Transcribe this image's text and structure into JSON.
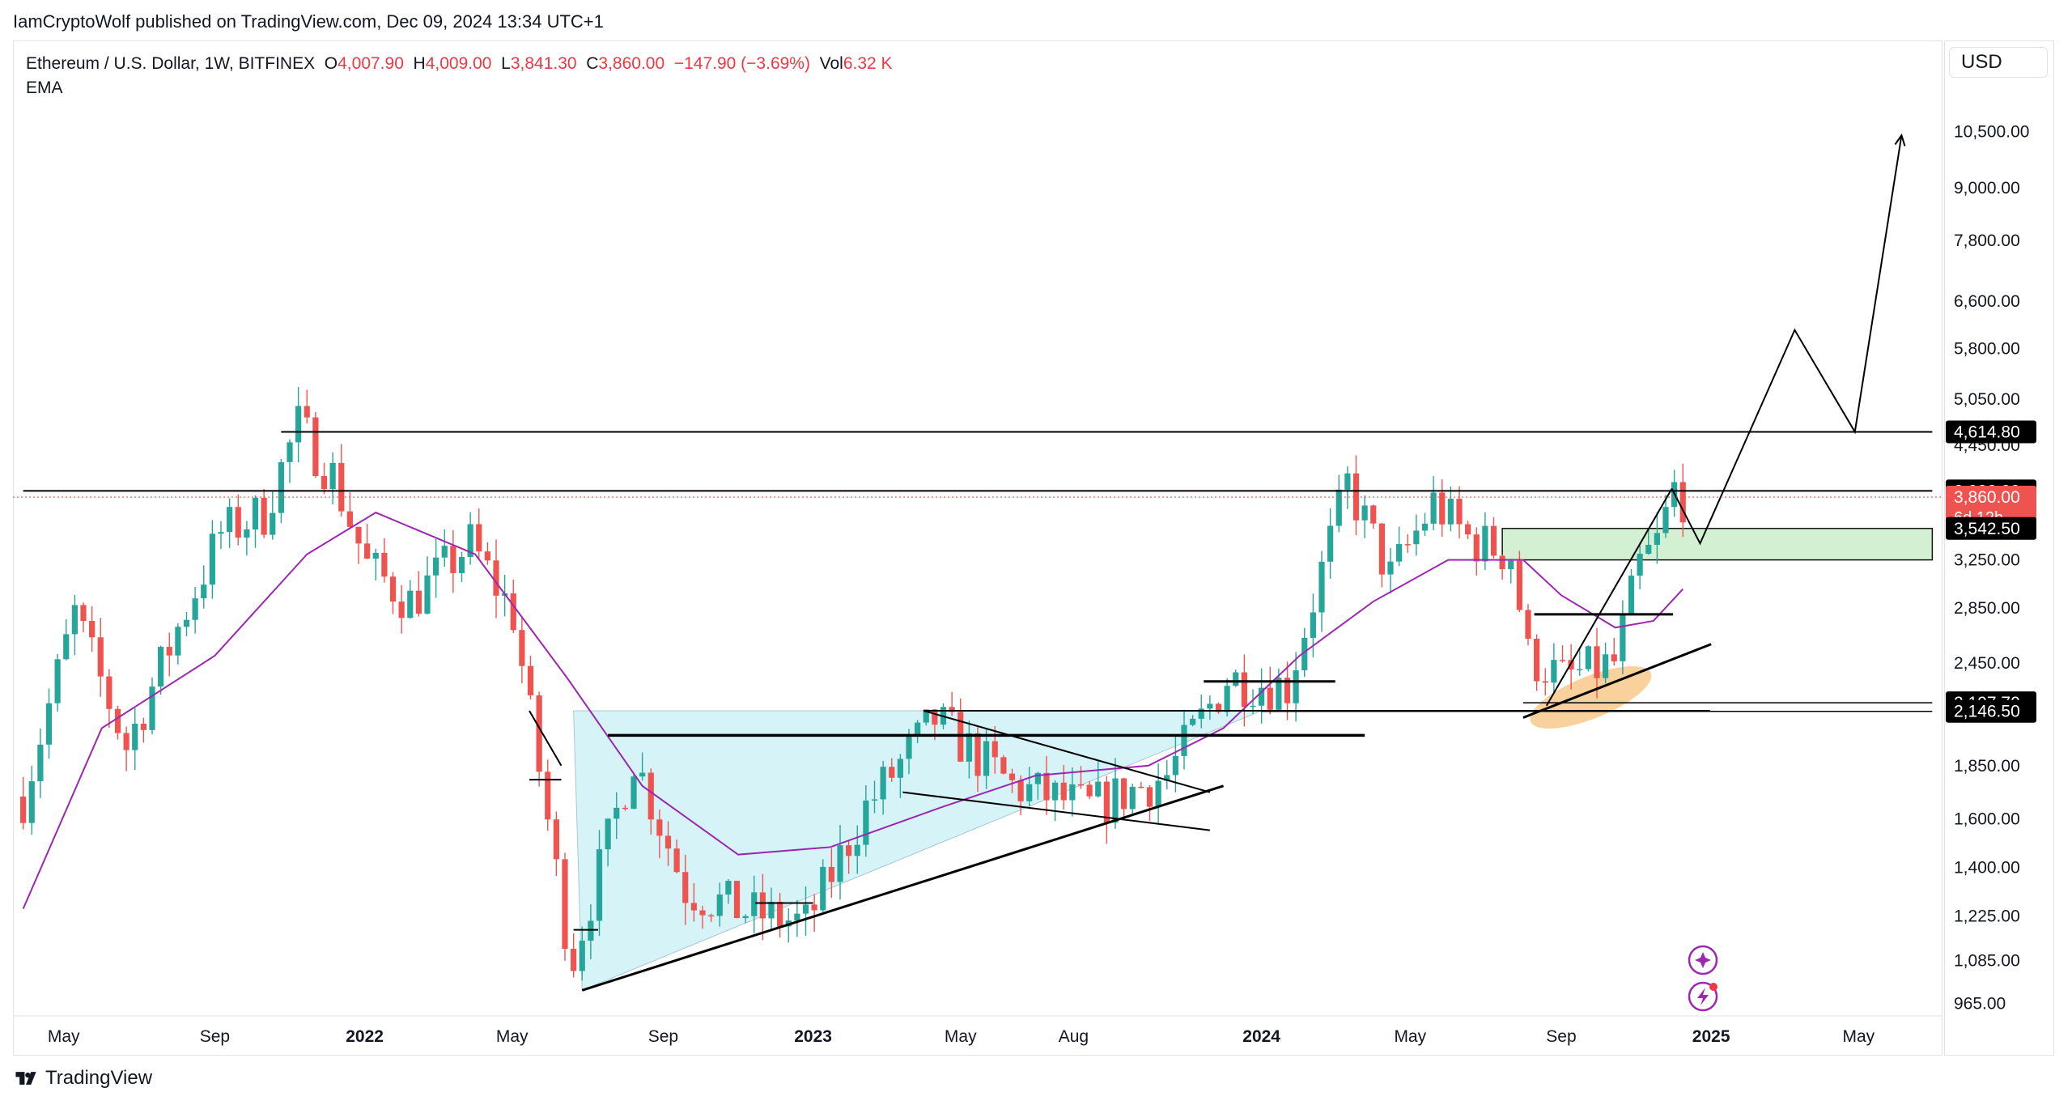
{
  "attribution": "IamCryptoWolf published on TradingView.com, Dec 09, 2024 13:34 UTC+1",
  "legend": {
    "symbol": "Ethereum / U.S. Dollar, 1W, BITFINEX",
    "o_key": "O",
    "o_val": "4,007.90",
    "h_key": "H",
    "h_val": "4,009.00",
    "l_key": "L",
    "l_val": "3,841.30",
    "c_key": "C",
    "c_val": "3,860.00",
    "change": "−147.90 (−3.69%)",
    "vol_key": "Vol",
    "vol_val": "6.32 K",
    "indicator": "EMA"
  },
  "currency_button": "USD",
  "footer_brand": "TradingView",
  "colors": {
    "up": "#26a69a",
    "down": "#ef5350",
    "ema": "#9c27b0",
    "triangle_fill": "#d6f3f8",
    "zone_fill": "#d4f0d2",
    "highlight": "#f7c98b",
    "price_tag": "#ef5350",
    "label_dark": "#000000"
  },
  "chart_data": {
    "type": "candlestick",
    "scale": "log",
    "ylim": [
      930,
      12200
    ],
    "y_ticks": [
      {
        "v": 10500,
        "t": "10,500.00"
      },
      {
        "v": 9000,
        "t": "9,000.00"
      },
      {
        "v": 7800,
        "t": "7,800.00"
      },
      {
        "v": 6600,
        "t": "6,600.00"
      },
      {
        "v": 5800,
        "t": "5,800.00"
      },
      {
        "v": 5050,
        "t": "5,050.00"
      },
      {
        "v": 4450,
        "t": "4,450.00"
      },
      {
        "v": 3250,
        "t": "3,250.00"
      },
      {
        "v": 2850,
        "t": "2,850.00"
      },
      {
        "v": 2450,
        "t": "2,450.00"
      },
      {
        "v": 1850,
        "t": "1,850.00"
      },
      {
        "v": 1600,
        "t": "1,600.00"
      },
      {
        "v": 1400,
        "t": "1,400.00"
      },
      {
        "v": 1225,
        "t": "1,225.00"
      },
      {
        "v": 1085,
        "t": "1,085.00"
      },
      {
        "v": 965,
        "t": "965.00"
      }
    ],
    "x_ticks": [
      {
        "d": "2021-05-01",
        "t": "May",
        "bold": false
      },
      {
        "d": "2021-09-01",
        "t": "Sep",
        "bold": false
      },
      {
        "d": "2022-01-01",
        "t": "2022",
        "bold": true
      },
      {
        "d": "2022-05-01",
        "t": "May",
        "bold": false
      },
      {
        "d": "2022-09-01",
        "t": "Sep",
        "bold": false
      },
      {
        "d": "2023-01-01",
        "t": "2023",
        "bold": true
      },
      {
        "d": "2023-05-01",
        "t": "May",
        "bold": false
      },
      {
        "d": "2023-08-01",
        "t": "Aug",
        "bold": false
      },
      {
        "d": "2024-01-01",
        "t": "2024",
        "bold": true
      },
      {
        "d": "2024-05-01",
        "t": "May",
        "bold": false
      },
      {
        "d": "2024-09-01",
        "t": "Sep",
        "bold": false
      },
      {
        "d": "2025-01-01",
        "t": "2025",
        "bold": true
      },
      {
        "d": "2025-05-01",
        "t": "May",
        "bold": false
      }
    ],
    "key_prices": [
      {
        "v": 4614.8,
        "t": "4,614.80",
        "style": "dark"
      },
      {
        "v": 3926,
        "t": "3,926.00",
        "style": "dark"
      },
      {
        "v": 3860,
        "t": "3,860.00",
        "style": "current",
        "sub": "6d 12h"
      },
      {
        "v": 3542.5,
        "t": "3,542.50",
        "style": "dark"
      },
      {
        "v": 2197.7,
        "t": "2,197.70",
        "style": "dark"
      },
      {
        "v": 2146.5,
        "t": "2,146.50",
        "style": "dark"
      }
    ],
    "series": [
      {
        "name": "",
        "kind": "close",
        "x": [
          "2021-03-29",
          "2021-05-10",
          "2021-06-21",
          "2021-08-02",
          "2021-09-06",
          "2021-10-11",
          "2021-11-08",
          "2021-12-06",
          "2022-01-03",
          "2022-02-07",
          "2022-03-28",
          "2022-05-02",
          "2022-06-13",
          "2022-06-20",
          "2022-08-08",
          "2022-09-19",
          "2022-11-07",
          "2022-12-26",
          "2023-02-13",
          "2023-04-10",
          "2023-06-12",
          "2023-08-14",
          "2023-10-16",
          "2023-12-04",
          "2024-01-22",
          "2024-03-11",
          "2024-04-15",
          "2024-05-20",
          "2024-06-17",
          "2024-07-22",
          "2024-08-05",
          "2024-09-02",
          "2024-10-14",
          "2024-11-04",
          "2024-11-18",
          "2024-12-02",
          "2024-12-09"
        ],
        "values": [
          1700,
          2800,
          1950,
          2700,
          3500,
          3700,
          4700,
          4100,
          3200,
          2900,
          3400,
          2800,
          1200,
          1100,
          1900,
          1320,
          1240,
          1200,
          1650,
          2100,
          1750,
          1650,
          1800,
          2350,
          2300,
          4000,
          3100,
          3800,
          3450,
          3300,
          2500,
          2350,
          2450,
          3200,
          3400,
          3950,
          3860
        ]
      },
      {
        "name": "EMA",
        "kind": "ema",
        "x": [
          "2021-03-29",
          "2021-06-01",
          "2021-09-01",
          "2021-11-15",
          "2022-01-10",
          "2022-04-01",
          "2022-06-15",
          "2022-08-15",
          "2022-11-01",
          "2023-01-15",
          "2023-04-15",
          "2023-07-01",
          "2023-10-01",
          "2023-12-01",
          "2024-02-01",
          "2024-04-01",
          "2024-06-01",
          "2024-08-01",
          "2024-09-01",
          "2024-10-15",
          "2024-11-15",
          "2024-12-09"
        ],
        "values": [
          1250,
          2050,
          2500,
          3300,
          3700,
          3300,
          2350,
          1750,
          1450,
          1480,
          1650,
          1800,
          1850,
          2050,
          2500,
          2900,
          3250,
          3250,
          2950,
          2700,
          2750,
          3000
        ]
      }
    ],
    "annotations": {
      "triangle": [
        [
          "2022-06-20",
          2150
        ],
        [
          "2024-01-01",
          2150
        ],
        [
          "2022-06-27",
          1000
        ]
      ],
      "support_line": [
        [
          "2022-06-27",
          1000
        ],
        [
          "2023-12-01",
          1750
        ]
      ],
      "resistance_2022": [
        [
          "2022-07-18",
          2010
        ],
        [
          "2024-03-25",
          2010
        ]
      ],
      "upper_range_line": [
        [
          "2023-04-01",
          2150
        ],
        [
          "2024-12-31",
          2150
        ]
      ],
      "wedge_top": [
        [
          "2023-04-01",
          2150
        ],
        [
          "2023-11-20",
          1720
        ]
      ],
      "wedge_bottom": [
        [
          "2023-03-15",
          1720
        ],
        [
          "2023-11-20",
          1550
        ]
      ],
      "zone": [
        [
          "2024-07-15",
          3542.5
        ],
        [
          "2025-06-30",
          3250
        ]
      ],
      "level_4614": [
        [
          "2021-10-25",
          4614.8
        ],
        [
          "2025-06-30",
          4614.8
        ]
      ],
      "level_3926": [
        [
          "2021-03-29",
          3926
        ],
        [
          "2025-06-30",
          3926
        ]
      ],
      "level_2197": [
        [
          "2024-08-01",
          2197.7
        ],
        [
          "2025-06-30",
          2197.7
        ]
      ],
      "level_2146": [
        [
          "2024-01-01",
          2146.5
        ],
        [
          "2025-06-30",
          2146.5
        ]
      ],
      "handle_line": [
        [
          "2024-08-10",
          2800
        ],
        [
          "2024-12-01",
          2800
        ]
      ],
      "ascending_line": [
        [
          "2024-08-01",
          2110
        ],
        [
          "2025-01-01",
          2580
        ]
      ],
      "breakout_line": [
        [
          "2024-08-20",
          2180
        ],
        [
          "2024-11-30",
          3950
        ]
      ],
      "projection": [
        [
          "2024-11-30",
          3950
        ],
        [
          "2024-12-23",
          3400
        ],
        [
          "2025-03-10",
          6100
        ],
        [
          "2025-04-28",
          4614.8
        ],
        [
          "2025-06-05",
          10400
        ]
      ],
      "small_pattern_2022": [
        [
          "2022-05-15",
          2150
        ],
        [
          "2022-06-10",
          1850
        ]
      ],
      "small_level_2022": [
        [
          "2022-05-15",
          1780
        ],
        [
          "2022-06-10",
          1780
        ]
      ],
      "small_level_2022b": [
        [
          "2022-06-20",
          1180
        ],
        [
          "2022-07-10",
          1180
        ]
      ],
      "small_level_2022c": [
        [
          "2022-11-15",
          1270
        ],
        [
          "2023-01-01",
          1270
        ]
      ],
      "small_level_2023": [
        [
          "2023-11-15",
          2330
        ],
        [
          "2024-03-01",
          2330
        ]
      ]
    }
  }
}
